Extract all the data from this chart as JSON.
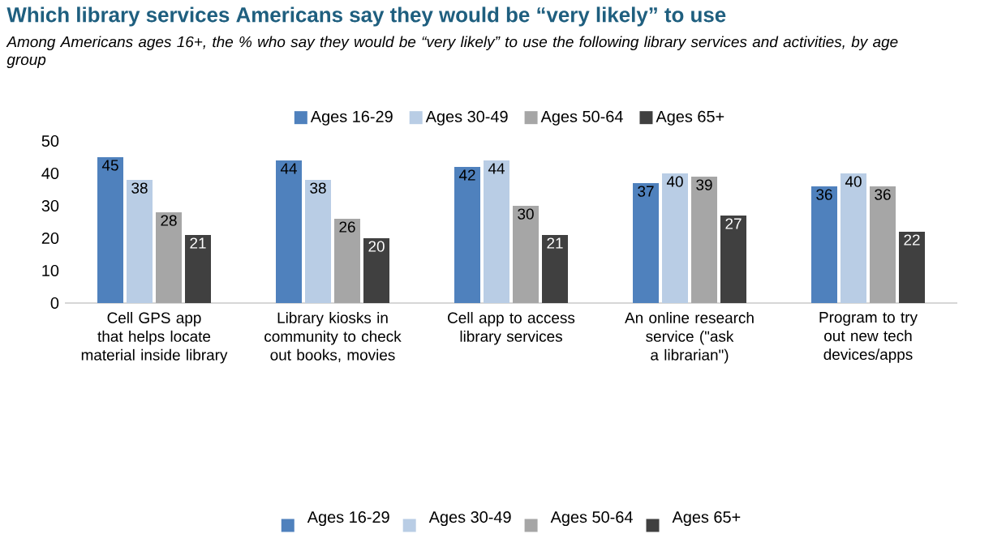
{
  "chart_data": {
    "type": "bar",
    "title": "Which library services Americans say they would be “very likely” to use",
    "subtitle": "Among Americans ages 16+, the % who say they would be “very likely” to use the following library services and activities, by age group",
    "categories": [
      "Cell GPS app that helps locate material inside library",
      "Library kiosks in community to check out books, movies",
      "Cell app to access library services",
      "An online research service (\"ask a librarian\")",
      "Program to try out new tech devices/apps"
    ],
    "series": [
      {
        "name": "Ages 16-29",
        "color": "#4f81bd",
        "values": [
          45,
          44,
          42,
          37,
          36
        ]
      },
      {
        "name": "Ages 30-49",
        "color": "#b9cde5",
        "values": [
          38,
          38,
          44,
          40,
          40
        ]
      },
      {
        "name": "Ages 50-64",
        "color": "#a6a6a6",
        "values": [
          28,
          26,
          30,
          39,
          36
        ]
      },
      {
        "name": "Ages 65+",
        "color": "#404040",
        "values": [
          21,
          20,
          21,
          27,
          22
        ]
      }
    ],
    "ylim": [
      0,
      50
    ],
    "yticks": [
      0,
      10,
      20,
      30,
      40,
      50
    ],
    "data_labels": true,
    "legend": "top"
  }
}
